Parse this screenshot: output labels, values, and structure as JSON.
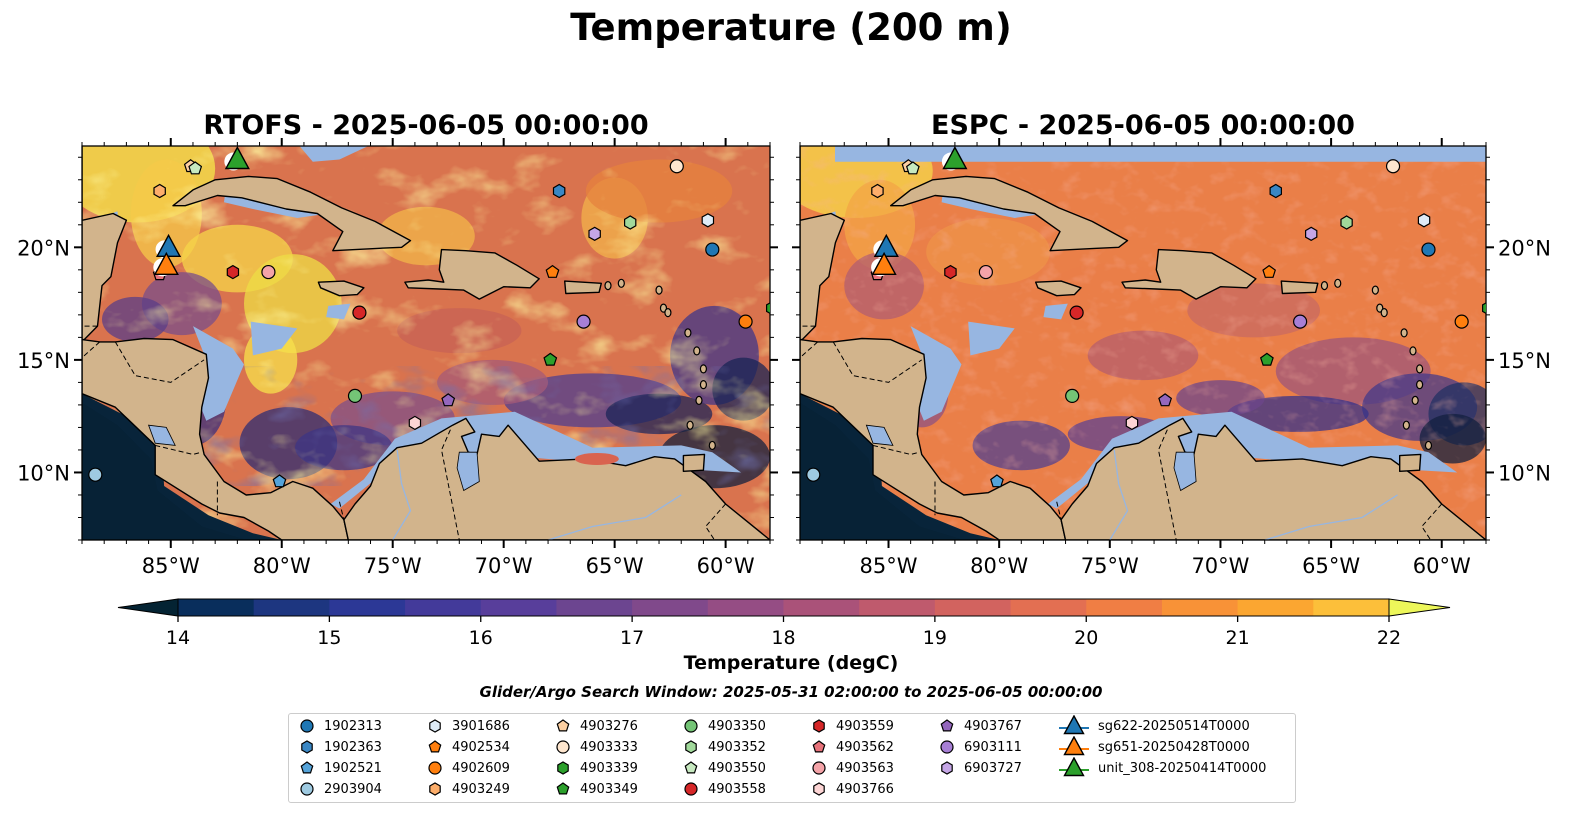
{
  "figure": {
    "title": "Temperature (200 m)",
    "search_window": "Glider/Argo Search Window: 2025-05-31 02:00:00 to 2025-06-05 00:00:00"
  },
  "panels": [
    {
      "title": "RTOFS - 2025-06-05 00:00:00",
      "model": "RTOFS"
    },
    {
      "title": "ESPC - 2025-06-05 00:00:00",
      "model": "ESPC"
    }
  ],
  "map": {
    "lon_range": [
      -89,
      -58
    ],
    "lat_range": [
      7,
      24.5
    ],
    "x_ticks": [
      "85°W",
      "80°W",
      "75°W",
      "70°W",
      "65°W",
      "60°W"
    ],
    "x_tick_values": [
      -85,
      -80,
      -75,
      -70,
      -65,
      -60
    ],
    "y_ticks": [
      "10°N",
      "15°N",
      "20°N"
    ],
    "y_tick_values": [
      10,
      15,
      20
    ],
    "land_color": "#d2b48c",
    "shelf_color": "#97b6e1"
  },
  "colorbar": {
    "label": "Temperature (degC)",
    "range": [
      14,
      22
    ],
    "ticks": [
      "14",
      "15",
      "16",
      "17",
      "18",
      "19",
      "20",
      "21",
      "22"
    ],
    "extend": "both",
    "colormap": "thermal"
  },
  "legend": {
    "argo_floats": [
      {
        "id": "1902313",
        "marker": "circle",
        "color": "#1f77b4",
        "lon": -60.6,
        "lat": 19.9
      },
      {
        "id": "1902363",
        "marker": "hexagon",
        "color": "#3a87c4",
        "lon": -67.5,
        "lat": 22.5
      },
      {
        "id": "1902521",
        "marker": "pentagon",
        "color": "#55a3d9",
        "lon": -80.1,
        "lat": 9.6
      },
      {
        "id": "2903904",
        "marker": "circle",
        "color": "#9ecae1",
        "lon": -88.4,
        "lat": 9.9
      },
      {
        "id": "3901686",
        "marker": "hexagon",
        "color": "#deebf7",
        "lon": -60.8,
        "lat": 21.2
      },
      {
        "id": "4902534",
        "marker": "pentagon",
        "color": "#ff7f0e",
        "lon": -67.8,
        "lat": 18.9
      },
      {
        "id": "4902609",
        "marker": "circle",
        "color": "#ff7f0e",
        "lon": -59.1,
        "lat": 16.7
      },
      {
        "id": "4903249",
        "marker": "hexagon",
        "color": "#fdae6b",
        "lon": -85.5,
        "lat": 22.5
      },
      {
        "id": "4903276",
        "marker": "pentagon",
        "color": "#fdd0a2",
        "lon": -84.1,
        "lat": 23.6
      },
      {
        "id": "4903333",
        "marker": "circle",
        "color": "#fee6ce",
        "lon": -62.2,
        "lat": 23.6
      },
      {
        "id": "4903339",
        "marker": "hexagon",
        "color": "#2ca02c",
        "lon": -57.9,
        "lat": 17.3
      },
      {
        "id": "4903349",
        "marker": "pentagon",
        "color": "#2ca02c",
        "lon": -67.9,
        "lat": 15.0
      },
      {
        "id": "4903350",
        "marker": "circle",
        "color": "#74c476",
        "lon": -76.7,
        "lat": 13.4
      },
      {
        "id": "4903352",
        "marker": "hexagon",
        "color": "#a1d99b",
        "lon": -64.3,
        "lat": 21.1
      },
      {
        "id": "4903550",
        "marker": "pentagon",
        "color": "#c7e9c0",
        "lon": -83.9,
        "lat": 23.5
      },
      {
        "id": "4903558",
        "marker": "circle",
        "color": "#d62728",
        "lon": -76.5,
        "lat": 17.1
      },
      {
        "id": "4903559",
        "marker": "hexagon",
        "color": "#d62728",
        "lon": -82.2,
        "lat": 18.9
      },
      {
        "id": "4903562",
        "marker": "pentagon",
        "color": "#e7727a",
        "lon": -85.5,
        "lat": 18.8
      },
      {
        "id": "4903563",
        "marker": "circle",
        "color": "#f4a3a8",
        "lon": -80.6,
        "lat": 18.9
      },
      {
        "id": "4903766",
        "marker": "hexagon",
        "color": "#fdd5d5",
        "lon": -74.0,
        "lat": 12.2
      },
      {
        "id": "4903767",
        "marker": "pentagon",
        "color": "#9467bd",
        "lon": -72.5,
        "lat": 13.2
      },
      {
        "id": "6903111",
        "marker": "circle",
        "color": "#a77fd5",
        "lon": -66.4,
        "lat": 16.7
      },
      {
        "id": "6903727",
        "marker": "hexagon",
        "color": "#c5a6e6",
        "lon": -65.9,
        "lat": 20.6
      }
    ],
    "gliders": [
      {
        "id": "sg622-20250514T0000",
        "color": "#1f77b4",
        "lon": -85.1,
        "lat": 20.0
      },
      {
        "id": "sg651-20250428T0000",
        "color": "#ff7f0e",
        "lon": -85.2,
        "lat": 19.2
      },
      {
        "id": "unit_308-20250414T0000",
        "color": "#2ca02c",
        "lon": -82.0,
        "lat": 23.9
      }
    ]
  }
}
